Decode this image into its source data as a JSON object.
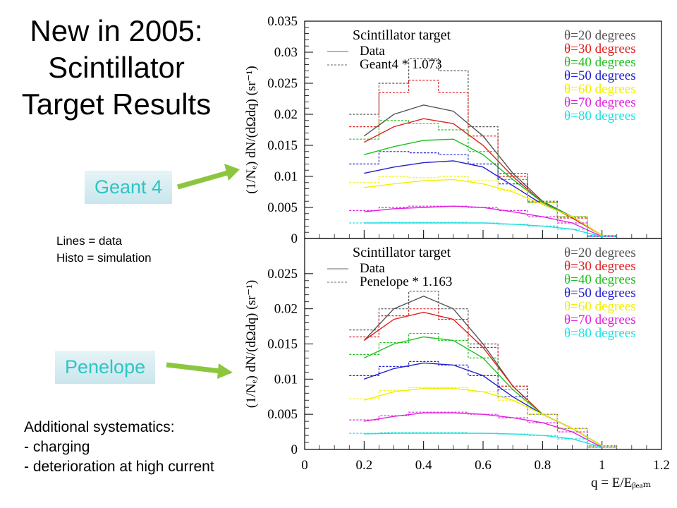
{
  "slide": {
    "title_lines": [
      "New in 2005:",
      "Scintillator",
      "Target Results"
    ],
    "label_geant": "Geant 4",
    "label_penelope": "Penelope",
    "legend_note": [
      "Lines = data",
      "Histo = simulation"
    ],
    "systematics": [
      "Additional systematics:",
      "- charging",
      "- deterioration at high current"
    ],
    "arrow_color": "#8cc63f"
  },
  "chart_data": [
    {
      "type": "line",
      "panel": "top",
      "title": "Scintillator target",
      "legend_data": "Data",
      "legend_sim": "Geant4 * 1.073",
      "ylabel": "(1/N_e) dN/(dΩdq) (sr^-1)",
      "xlabel": "q = E/E_beam",
      "xlim": [
        0,
        1.2
      ],
      "ylim": [
        0,
        0.035
      ],
      "y_ticks": [
        "0",
        "0.005",
        "0.01",
        "0.015",
        "0.02",
        "0.025",
        "0.03",
        "0.035"
      ],
      "x_ticks": [
        "0",
        "0.2",
        "0.4",
        "0.6",
        "0.8",
        "1",
        "1.2"
      ],
      "x": [
        0.2,
        0.3,
        0.4,
        0.5,
        0.6,
        0.7,
        0.8,
        0.9,
        1.0
      ],
      "series": [
        {
          "name": "θ=20 degrees",
          "color": "#555555",
          "data": [
            0.0165,
            0.02,
            0.0215,
            0.0205,
            0.0165,
            0.0105,
            0.006,
            0.0035,
            0.0005
          ],
          "sim": [
            0.02,
            0.025,
            0.029,
            0.027,
            0.018,
            0.0105,
            0.006,
            0.0035,
            0.0005
          ]
        },
        {
          "name": "θ=30 degrees",
          "color": "#e02020",
          "data": [
            0.0155,
            0.018,
            0.0193,
            0.0185,
            0.015,
            0.01,
            0.0058,
            0.0033,
            0.0005
          ],
          "sim": [
            0.018,
            0.0235,
            0.0255,
            0.0235,
            0.0165,
            0.01,
            0.0058,
            0.0033,
            0.0005
          ]
        },
        {
          "name": "θ=40 degrees",
          "color": "#20c020",
          "data": [
            0.0135,
            0.0148,
            0.0158,
            0.016,
            0.0135,
            0.0095,
            0.0058,
            0.0035,
            0.0005
          ],
          "sim": [
            0.016,
            0.019,
            0.0185,
            0.0175,
            0.014,
            0.0095,
            0.0058,
            0.0035,
            0.0005
          ]
        },
        {
          "name": "θ=50 degrees",
          "color": "#2020d0",
          "data": [
            0.0105,
            0.0115,
            0.0122,
            0.0125,
            0.0115,
            0.0085,
            0.0055,
            0.0035,
            0.0005
          ],
          "sim": [
            0.012,
            0.014,
            0.0138,
            0.0135,
            0.012,
            0.0088,
            0.0058,
            0.0035,
            0.0005
          ]
        },
        {
          "name": "θ=60 degrees",
          "color": "#f0f000",
          "data": [
            0.0082,
            0.0088,
            0.0093,
            0.0095,
            0.0088,
            0.0075,
            0.0055,
            0.0035,
            0.0005
          ],
          "sim": [
            0.009,
            0.01,
            0.0098,
            0.01,
            0.0093,
            0.0078,
            0.0058,
            0.0035,
            0.0005
          ]
        },
        {
          "name": "θ=70 degrees",
          "color": "#e020e0",
          "data": [
            0.0043,
            0.0048,
            0.005,
            0.0052,
            0.005,
            0.0043,
            0.0035,
            0.0025,
            0.0003
          ],
          "sim": [
            0.0045,
            0.005,
            0.0052,
            0.0052,
            0.005,
            0.0045,
            0.0035,
            0.0025,
            0.0003
          ]
        },
        {
          "name": "θ=80 degrees",
          "color": "#20e0e0",
          "data": [
            0.0025,
            0.0025,
            0.0025,
            0.0025,
            0.0025,
            0.0023,
            0.002,
            0.0015,
            0.0003
          ],
          "sim": [
            0.0025,
            0.0026,
            0.0026,
            0.0026,
            0.0025,
            0.0023,
            0.002,
            0.0015,
            0.0003
          ]
        }
      ]
    },
    {
      "type": "line",
      "panel": "bottom",
      "title": "Scintillator target",
      "legend_data": "Data",
      "legend_sim": "Penelope * 1.163",
      "ylabel": "(1/N_e) dN/(dΩdq) (sr^-1)",
      "xlabel": "q = E/E_beam",
      "xlim": [
        0,
        1.2
      ],
      "ylim": [
        0,
        0.03
      ],
      "y_ticks": [
        "0",
        "0.005",
        "0.01",
        "0.015",
        "0.02",
        "0.025"
      ],
      "x_ticks": [
        "0",
        "0.2",
        "0.4",
        "0.6",
        "0.8",
        "1",
        "1.2"
      ],
      "x": [
        0.2,
        0.3,
        0.4,
        0.5,
        0.6,
        0.7,
        0.8,
        0.9,
        1.0
      ],
      "series": [
        {
          "name": "θ=20 degrees",
          "color": "#555555",
          "data": [
            0.0155,
            0.02,
            0.0218,
            0.02,
            0.015,
            0.009,
            0.005,
            0.003,
            0.0005
          ],
          "sim": [
            0.017,
            0.02,
            0.0225,
            0.02,
            0.015,
            0.009,
            0.005,
            0.003,
            0.0005
          ]
        },
        {
          "name": "θ=30 degrees",
          "color": "#e02020",
          "data": [
            0.0155,
            0.0185,
            0.0195,
            0.0185,
            0.0145,
            0.009,
            0.005,
            0.003,
            0.0005
          ],
          "sim": [
            0.016,
            0.019,
            0.02,
            0.0185,
            0.0145,
            0.009,
            0.005,
            0.003,
            0.0005
          ]
        },
        {
          "name": "θ=40 degrees",
          "color": "#20c020",
          "data": [
            0.013,
            0.015,
            0.016,
            0.0155,
            0.013,
            0.0085,
            0.005,
            0.003,
            0.0005
          ],
          "sim": [
            0.0135,
            0.0152,
            0.0165,
            0.0155,
            0.013,
            0.0085,
            0.005,
            0.003,
            0.0005
          ]
        },
        {
          "name": "θ=50 degrees",
          "color": "#2020d0",
          "data": [
            0.01,
            0.0115,
            0.0123,
            0.012,
            0.0105,
            0.0075,
            0.005,
            0.003,
            0.0005
          ],
          "sim": [
            0.0105,
            0.0118,
            0.0125,
            0.012,
            0.0105,
            0.0075,
            0.005,
            0.003,
            0.0005
          ]
        },
        {
          "name": "θ=60 degrees",
          "color": "#f0f000",
          "data": [
            0.007,
            0.0082,
            0.0087,
            0.0087,
            0.0082,
            0.007,
            0.005,
            0.003,
            0.0005
          ],
          "sim": [
            0.0072,
            0.0084,
            0.0088,
            0.0088,
            0.0082,
            0.007,
            0.005,
            0.003,
            0.0005
          ]
        },
        {
          "name": "θ=70 degrees",
          "color": "#e020e0",
          "data": [
            0.004,
            0.0047,
            0.0052,
            0.0052,
            0.005,
            0.0045,
            0.0038,
            0.0025,
            0.0003
          ],
          "sim": [
            0.0042,
            0.0048,
            0.0053,
            0.0053,
            0.005,
            0.0045,
            0.0038,
            0.0025,
            0.0003
          ]
        },
        {
          "name": "θ=80 degrees",
          "color": "#20e0e0",
          "data": [
            0.0022,
            0.0023,
            0.0023,
            0.0023,
            0.0023,
            0.0022,
            0.002,
            0.0015,
            0.0003
          ],
          "sim": [
            0.0023,
            0.0024,
            0.0024,
            0.0024,
            0.0023,
            0.0022,
            0.002,
            0.0015,
            0.0003
          ]
        }
      ]
    }
  ]
}
